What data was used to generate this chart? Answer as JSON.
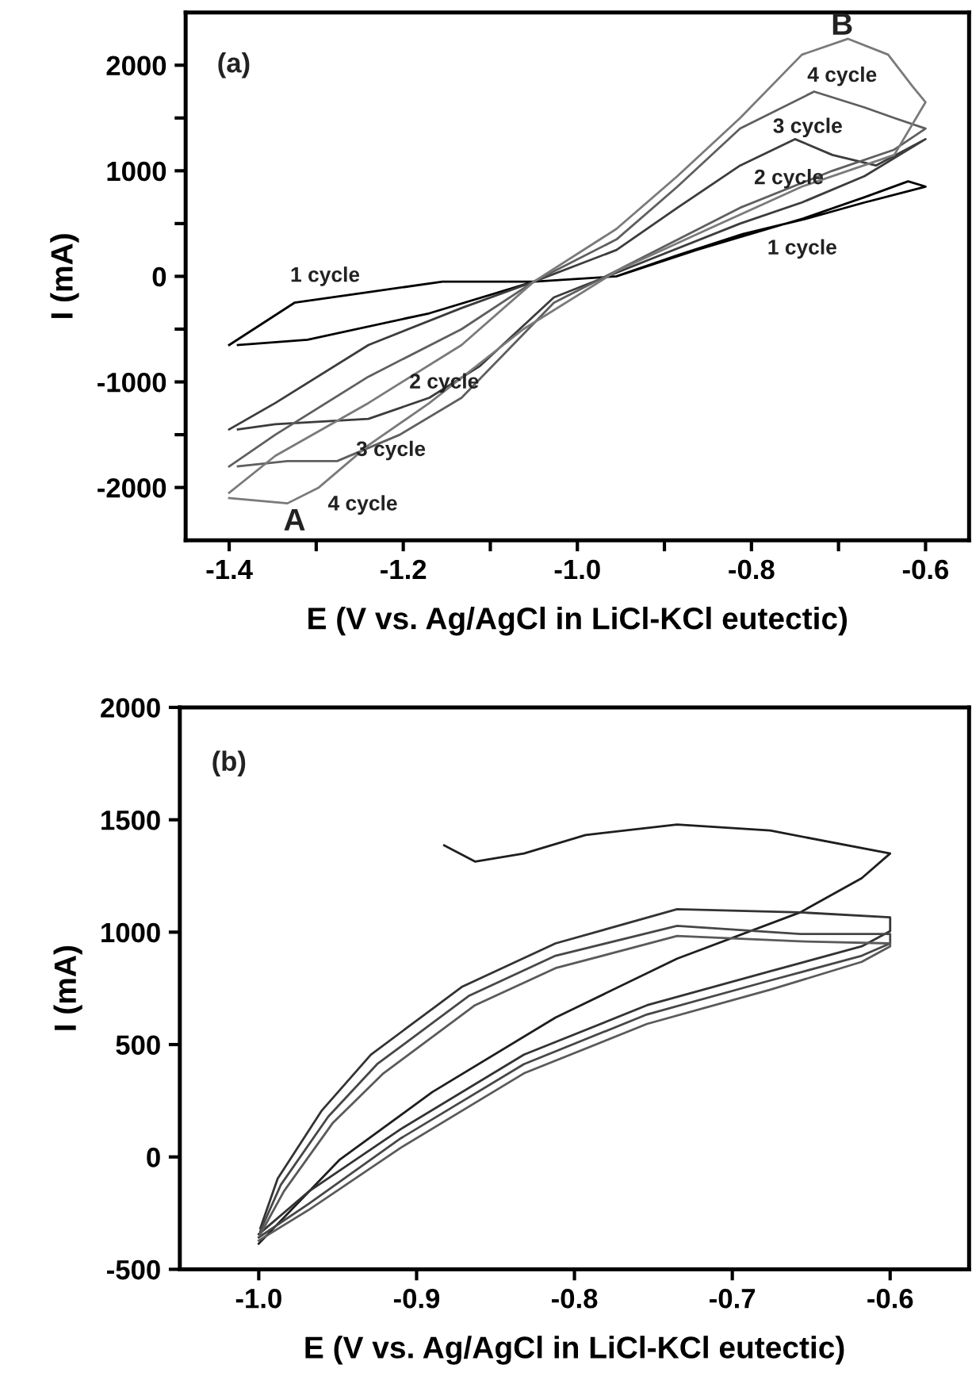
{
  "chart_data": [
    {
      "type": "line",
      "xlabel": "E (V vs. Ag/AgCl in LiCl-KCl eutectic)",
      "ylabel": "I (mA)",
      "xlim": [
        -1.45,
        -0.55
      ],
      "ylim": [
        -2500,
        2500
      ],
      "xticks": [
        -1.4,
        {
          "value": -1.3,
          "label": null
        },
        -1.2,
        {
          "value": -1.1,
          "label": null
        },
        {
          "value": -1.0,
          "label": "-1.0"
        },
        {
          "value": -0.9,
          "label": null
        },
        -0.8,
        {
          "value": -0.7,
          "label": null
        },
        -0.6
      ],
      "yticks": [
        -2000,
        {
          "value": -1500,
          "label": null
        },
        -1000,
        {
          "value": -500,
          "label": null
        },
        0,
        {
          "value": 500,
          "label": null
        },
        1000,
        {
          "value": 1500,
          "label": null
        },
        2000
      ],
      "grid": false,
      "marker": "none",
      "line_style": "solid",
      "annotations": [
        "(a)",
        "B",
        "A",
        "4 cycle",
        "3 cycle",
        "2 cycle",
        "1 cycle",
        "1 cycle",
        "2 cycle",
        "3 cycle",
        "4 cycle"
      ],
      "series": [
        {
          "color": "#000000",
          "x": [
            -1.4,
            -1.325,
            -1.24,
            -1.155,
            -1.05,
            -0.955,
            -0.863,
            -0.74,
            -0.67,
            -0.62,
            -0.6,
            -0.67,
            -0.735,
            -0.81,
            -0.885,
            -0.955,
            -1.05,
            -1.17,
            -1.31,
            -1.39
          ],
          "values": [
            -650,
            -250,
            -150,
            -50,
            -50,
            0,
            250,
            550,
            750,
            900,
            850,
            700,
            550,
            400,
            200,
            0,
            -50,
            -350,
            -600,
            -650
          ]
        },
        {
          "color": "#3c3c3c",
          "x": [
            -1.4,
            -1.347,
            -1.24,
            -1.133,
            -1.05,
            -0.955,
            -0.885,
            -0.813,
            -0.75,
            -0.707,
            -0.657,
            -0.6,
            -0.67,
            -0.742,
            -0.813,
            -0.92,
            -1.027,
            -1.112,
            -1.17,
            -1.24,
            -1.347,
            -1.39
          ],
          "values": [
            -1450,
            -1200,
            -650,
            -300,
            -50,
            250,
            650,
            1050,
            1300,
            1150,
            1050,
            1300,
            950,
            700,
            500,
            150,
            -200,
            -850,
            -1150,
            -1350,
            -1400,
            -1450
          ]
        },
        {
          "color": "#5f5f5f",
          "x": [
            -1.4,
            -1.347,
            -1.24,
            -1.133,
            -1.05,
            -0.955,
            -0.885,
            -0.813,
            -0.728,
            -0.67,
            -0.636,
            -0.6,
            -0.636,
            -0.707,
            -0.813,
            -0.92,
            -1.027,
            -1.133,
            -1.204,
            -1.276,
            -1.333,
            -1.39
          ],
          "values": [
            -1800,
            -1500,
            -950,
            -500,
            -50,
            350,
            850,
            1400,
            1750,
            1600,
            1500,
            1400,
            1200,
            1000,
            650,
            200,
            -250,
            -1150,
            -1500,
            -1750,
            -1750,
            -1800
          ]
        },
        {
          "color": "#7a7a7a",
          "x": [
            -1.4,
            -1.347,
            -1.24,
            -1.133,
            -1.05,
            -0.955,
            -0.885,
            -0.813,
            -0.742,
            -0.689,
            -0.643,
            -0.615,
            -0.6,
            -0.636,
            -0.742,
            -0.849,
            -0.955,
            -1.062,
            -1.17,
            -1.24,
            -1.297,
            -1.333,
            -1.4
          ],
          "values": [
            -2050,
            -1700,
            -1200,
            -650,
            -50,
            450,
            950,
            1500,
            2100,
            2250,
            2100,
            1800,
            1650,
            1150,
            850,
            450,
            50,
            -500,
            -1200,
            -1600,
            -2000,
            -2150,
            -2100
          ]
        }
      ]
    },
    {
      "type": "line",
      "xlabel": "E (V vs. Ag/AgCl in LiCl-KCl eutectic)",
      "ylabel": "I (mA)",
      "xlim": [
        -1.05,
        -0.55
      ],
      "ylim": [
        -500,
        2000
      ],
      "xticks": [
        {
          "value": -1.0,
          "label": "-1.0"
        },
        -0.9,
        -0.8,
        -0.7,
        -0.6
      ],
      "yticks": [
        -500,
        0,
        500,
        1000,
        1500,
        2000
      ],
      "grid": false,
      "marker": "none",
      "line_style": "solid",
      "annotations": [
        "(b)"
      ],
      "series": [
        {
          "color": "#1e1e1e",
          "x": [
            -0.8825,
            -0.863,
            -0.832,
            -0.793,
            -0.735,
            -0.676,
            -0.6,
            -0.618,
            -0.657,
            -0.735,
            -0.812,
            -0.89,
            -0.949,
            -1.0
          ],
          "values": [
            1386,
            1314,
            1350,
            1432,
            1479,
            1452,
            1350,
            1240,
            1088,
            882,
            620,
            289,
            -14,
            -386
          ]
        },
        {
          "color": "#333333",
          "x": [
            -0.999,
            -0.988,
            -0.96,
            -0.929,
            -0.871,
            -0.812,
            -0.735,
            -0.657,
            -0.6,
            -0.6,
            -0.618,
            -0.676,
            -0.754,
            -0.832,
            -0.91,
            -0.968,
            -1.0
          ],
          "values": [
            -317,
            -96,
            207,
            455,
            758,
            950,
            1102,
            1088,
            1066,
            1005,
            937,
            826,
            675,
            455,
            124,
            -152,
            -344
          ]
        },
        {
          "color": "#474747",
          "x": [
            -0.999,
            -0.986,
            -0.956,
            -0.925,
            -0.867,
            -0.812,
            -0.735,
            -0.657,
            -0.6,
            -0.6,
            -0.618,
            -0.676,
            -0.754,
            -0.832,
            -0.91,
            -0.968,
            -1.0
          ],
          "values": [
            -330,
            -124,
            179,
            413,
            716,
            895,
            1028,
            992,
            992,
            950,
            895,
            785,
            634,
            413,
            83,
            -207,
            -358
          ]
        },
        {
          "color": "#5a5a5a",
          "x": [
            -0.999,
            -0.984,
            -0.953,
            -0.921,
            -0.863,
            -0.812,
            -0.735,
            -0.657,
            -0.6,
            -0.6,
            -0.618,
            -0.676,
            -0.754,
            -0.832,
            -0.91,
            -0.968,
            -1.0
          ],
          "values": [
            -344,
            -152,
            152,
            372,
            675,
            840,
            983,
            959,
            950,
            937,
            868,
            744,
            592,
            372,
            41,
            -234,
            -372
          ]
        }
      ]
    }
  ]
}
